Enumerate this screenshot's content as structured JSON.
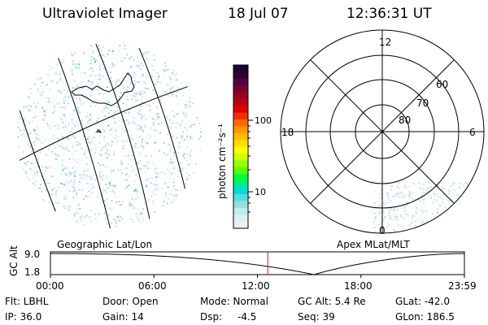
{
  "header": {
    "title": "Ultraviolet Imager",
    "date": "18 Jul 07",
    "time": "12:36:31 UT"
  },
  "colorbar": {
    "unit_label": "photon cm⁻²s⁻¹",
    "ticks": [
      "100",
      "10"
    ],
    "colors": [
      "#1a0033",
      "#330033",
      "#550044",
      "#770033",
      "#990022",
      "#bb0011",
      "#dd0000",
      "#ee3300",
      "#ff6600",
      "#ff9900",
      "#ffbb00",
      "#ffdd00",
      "#ffff00",
      "#ccff00",
      "#99ff00",
      "#55ff00",
      "#00ff33",
      "#00ee88",
      "#00dddd",
      "#55dddd",
      "#99dddd",
      "#bbeeee",
      "#ddeeee",
      "#eeeeee"
    ]
  },
  "maps": {
    "left_label": "Geographic Lat/Lon",
    "right_label": "Apex MLat/MLT",
    "mlt_labels": {
      "top": "12",
      "left": "18",
      "right": "6",
      "bottom": "0"
    },
    "lat_labels": [
      "60",
      "70",
      "80"
    ]
  },
  "timeline": {
    "y_axis_label": "GC Alt",
    "y_ticks": [
      "9.0",
      "1.8"
    ],
    "x_ticks": [
      "00:00",
      "06:00",
      "12:00",
      "18:00",
      "23:59"
    ],
    "current_marker_hour": 12.6
  },
  "info": {
    "filter": "Flt: LBHL",
    "ip": "IP: 36.0",
    "door": "Door: Open",
    "gain": "Gain: 14",
    "mode": "Mode: Normal",
    "dsp": "Dsp:",
    "dsp_value": "-4.5",
    "gc_alt": "GC Alt: 5.4 Re",
    "seq": "Seq: 39",
    "glat": "GLat: -42.0",
    "glon": "GLon: 186.5"
  }
}
